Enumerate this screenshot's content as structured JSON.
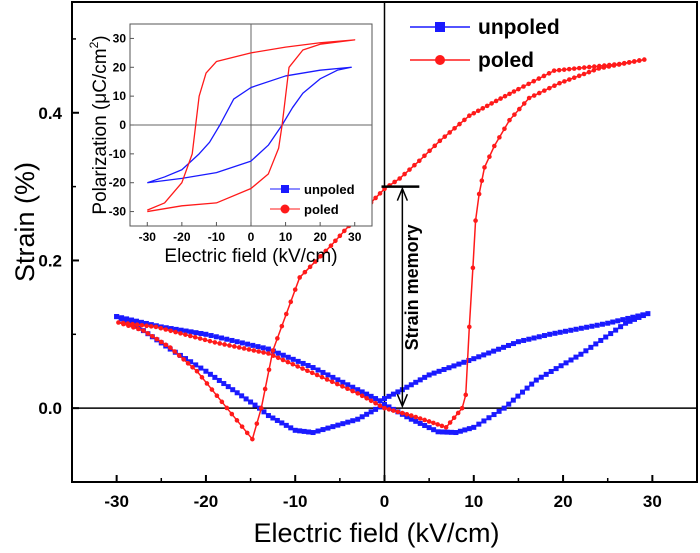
{
  "chart_data": [
    {
      "type": "line",
      "xlabel": "Electric field (kV/cm)",
      "ylabel": "Strain (%)",
      "xlim": [
        -35,
        35
      ],
      "ylim": [
        -0.1,
        0.55
      ],
      "xticks": [
        "-30",
        "-20",
        "-10",
        "0",
        "10",
        "20",
        "30"
      ],
      "yticks": [
        "0.0",
        "0.2",
        "0.4"
      ],
      "legend_position": "top-right",
      "annotation": "Strain memory",
      "annotation_range": {
        "x": 2,
        "from": 0.0,
        "to": 0.3
      },
      "series": [
        {
          "name": "unpoled",
          "color": "#1a1aff",
          "marker": "square",
          "x": [
            -30,
            -25,
            -20,
            -13,
            -8,
            -3,
            -0.5,
            2,
            5,
            10,
            15,
            18.5,
            25,
            29.5,
            27,
            22,
            17,
            13.4,
            10,
            8,
            6,
            3,
            0,
            -3,
            -8,
            -10,
            -13,
            -14,
            -17,
            -20,
            -24,
            -27,
            -30
          ],
          "y": [
            0.124,
            0.11,
            0.1,
            0.08,
            0.055,
            0.025,
            0.01,
            0.025,
            0.045,
            0.067,
            0.09,
            0.1,
            0.115,
            0.128,
            0.115,
            0.073,
            0.038,
            0.0,
            -0.026,
            -0.033,
            -0.032,
            -0.015,
            0.005,
            -0.015,
            -0.033,
            -0.03,
            -0.01,
            0.0,
            0.025,
            0.05,
            0.08,
            0.105,
            0.124
          ]
        },
        {
          "name": "poled",
          "color": "#ff1a1a",
          "marker": "circle",
          "x": [
            0,
            3,
            5,
            6.9,
            8.7,
            9.1,
            9.5,
            9.9,
            10.2,
            10.6,
            11.2,
            12.3,
            14,
            16.2,
            19.6,
            24,
            29.1,
            26.3,
            19,
            15,
            12.5,
            9.5,
            6.2,
            3.9,
            1.7,
            0,
            -3,
            -6,
            -9.5,
            -12.5,
            -13.8,
            -14.8,
            -17.1,
            -21,
            -24,
            -27,
            -29.8,
            -25.6,
            -19,
            -13,
            -7,
            -3,
            0
          ],
          "y": [
            0.0,
            -0.01,
            -0.018,
            -0.026,
            0.0,
            0.018,
            0.11,
            0.19,
            0.254,
            0.29,
            0.326,
            0.355,
            0.39,
            0.42,
            0.44,
            0.46,
            0.472,
            0.466,
            0.457,
            0.432,
            0.416,
            0.396,
            0.362,
            0.335,
            0.311,
            0.297,
            0.26,
            0.22,
            0.177,
            0.078,
            0.0,
            -0.042,
            -0.008,
            0.05,
            0.082,
            0.105,
            0.116,
            0.11,
            0.089,
            0.074,
            0.042,
            0.02,
            0.0
          ]
        }
      ]
    },
    {
      "type": "line",
      "xlabel": "Electric field (kV/cm)",
      "ylabel": "Polarization (μC/cm²)",
      "ylabel_parts": {
        "main": "Polarization (μC/cm",
        "sup": "2",
        "end": ")"
      },
      "xlim": [
        -35,
        35
      ],
      "ylim": [
        -35,
        35
      ],
      "xticks": [
        "-30",
        "-20",
        "-10",
        "0",
        "10",
        "20",
        "30"
      ],
      "yticks": [
        "-30",
        "-20",
        "-10",
        "0",
        "10",
        "20",
        "30"
      ],
      "legend_position": "bottom-right",
      "series": [
        {
          "name": "unpoled",
          "color": "#1a1aff",
          "x": [
            -30,
            -20,
            -10,
            0,
            5,
            9,
            12,
            15,
            20,
            25,
            29,
            20,
            10,
            0,
            -5,
            -9,
            -12,
            -15,
            -20,
            -25,
            -30
          ],
          "y": [
            -20,
            -18.5,
            -16.5,
            -12.5,
            -7,
            0,
            6,
            11,
            16,
            19,
            20,
            19,
            17,
            13,
            9,
            0,
            -6,
            -10,
            -15.5,
            -18,
            -20
          ]
        },
        {
          "name": "poled",
          "color": "#ff1a1a",
          "x": [
            -30,
            -20,
            -10,
            0,
            5,
            8,
            9,
            10,
            11,
            15,
            20,
            30,
            20,
            10,
            0,
            -10,
            -13,
            -15,
            -16,
            -17,
            -20,
            -25,
            -30
          ],
          "y": [
            -30,
            -28,
            -27,
            -22,
            -17,
            -8,
            0,
            10,
            20,
            26,
            28,
            29.5,
            28.5,
            27,
            25,
            22,
            18,
            10,
            0,
            -10,
            -20,
            -27,
            -29.5
          ]
        }
      ]
    }
  ]
}
